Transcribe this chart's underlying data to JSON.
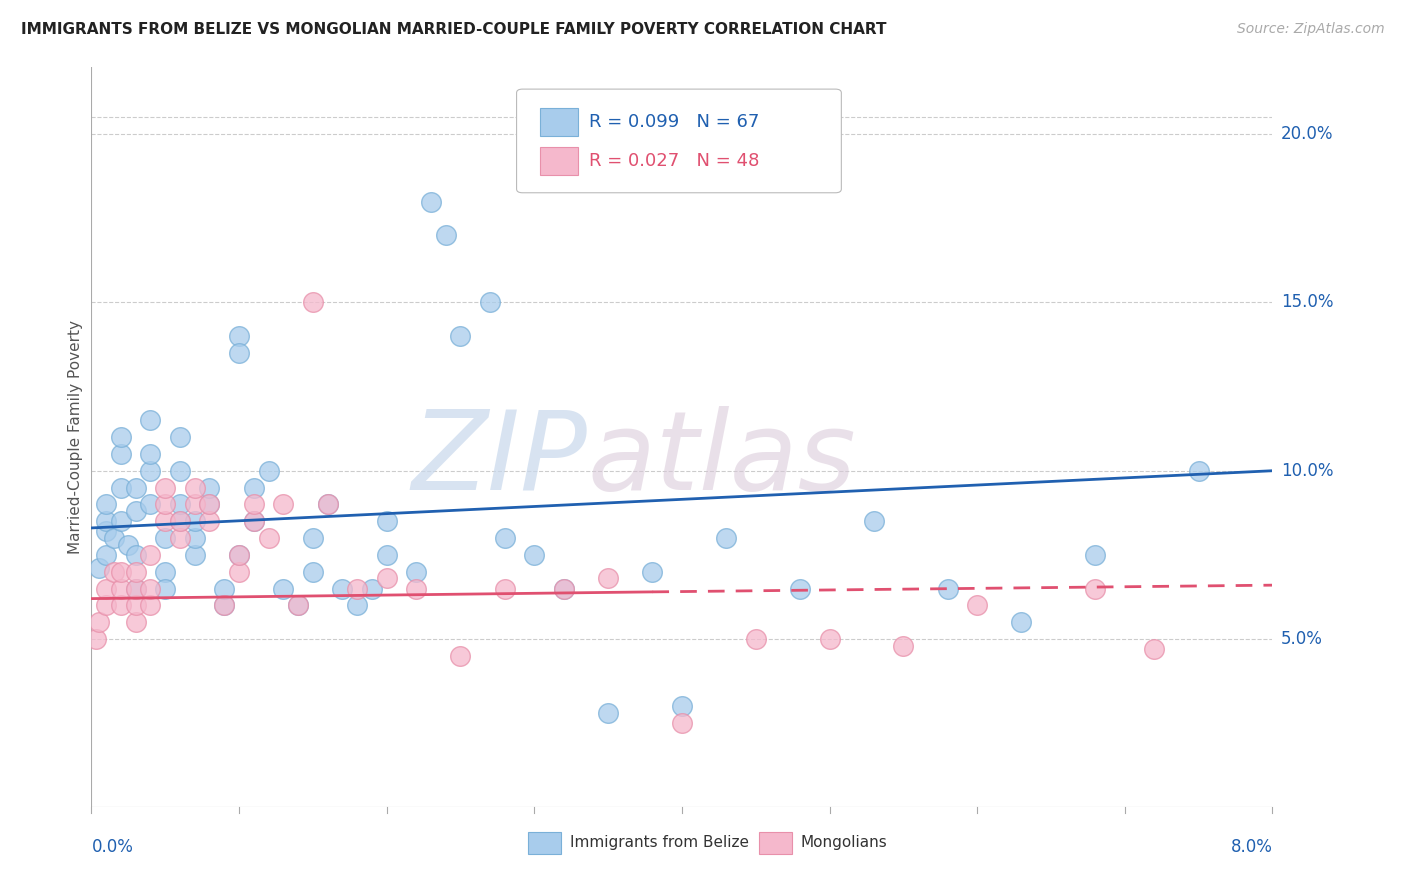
{
  "title": "IMMIGRANTS FROM BELIZE VS MONGOLIAN MARRIED-COUPLE FAMILY POVERTY CORRELATION CHART",
  "source": "Source: ZipAtlas.com",
  "ylabel": "Married-Couple Family Poverty",
  "yaxis_labels": [
    "5.0%",
    "10.0%",
    "15.0%",
    "20.0%"
  ],
  "yaxis_values": [
    0.05,
    0.1,
    0.15,
    0.2
  ],
  "xlim": [
    0.0,
    0.08
  ],
  "ylim": [
    0.0,
    0.22
  ],
  "watermark_zip": "ZIP",
  "watermark_atlas": "atlas",
  "blue_color": "#a8ccec",
  "blue_edge": "#7ab0d8",
  "pink_color": "#f5b8cc",
  "pink_edge": "#e890aa",
  "trend_blue": "#2060b0",
  "trend_pink": "#e05070",
  "legend1_R": "R = 0.099",
  "legend1_N": "N = 67",
  "legend2_R": "R = 0.027",
  "legend2_N": "N = 48",
  "belize_x": [
    0.0005,
    0.001,
    0.001,
    0.001,
    0.001,
    0.0015,
    0.002,
    0.002,
    0.002,
    0.002,
    0.0025,
    0.003,
    0.003,
    0.003,
    0.003,
    0.004,
    0.004,
    0.004,
    0.004,
    0.005,
    0.005,
    0.005,
    0.006,
    0.006,
    0.006,
    0.006,
    0.007,
    0.007,
    0.007,
    0.008,
    0.008,
    0.009,
    0.009,
    0.01,
    0.01,
    0.01,
    0.011,
    0.011,
    0.012,
    0.013,
    0.014,
    0.015,
    0.015,
    0.016,
    0.017,
    0.018,
    0.019,
    0.02,
    0.02,
    0.022,
    0.023,
    0.024,
    0.025,
    0.027,
    0.028,
    0.03,
    0.032,
    0.035,
    0.038,
    0.04,
    0.043,
    0.048,
    0.053,
    0.058,
    0.063,
    0.068,
    0.075
  ],
  "belize_y": [
    0.071,
    0.075,
    0.082,
    0.085,
    0.09,
    0.08,
    0.095,
    0.105,
    0.11,
    0.085,
    0.078,
    0.088,
    0.095,
    0.075,
    0.065,
    0.09,
    0.1,
    0.105,
    0.115,
    0.08,
    0.07,
    0.065,
    0.085,
    0.09,
    0.1,
    0.11,
    0.075,
    0.08,
    0.085,
    0.09,
    0.095,
    0.06,
    0.065,
    0.14,
    0.135,
    0.075,
    0.085,
    0.095,
    0.1,
    0.065,
    0.06,
    0.07,
    0.08,
    0.09,
    0.065,
    0.06,
    0.065,
    0.075,
    0.085,
    0.07,
    0.18,
    0.17,
    0.14,
    0.15,
    0.08,
    0.075,
    0.065,
    0.028,
    0.07,
    0.03,
    0.08,
    0.065,
    0.085,
    0.065,
    0.055,
    0.075,
    0.1
  ],
  "mongol_x": [
    0.0003,
    0.0005,
    0.001,
    0.001,
    0.0015,
    0.002,
    0.002,
    0.002,
    0.003,
    0.003,
    0.003,
    0.003,
    0.004,
    0.004,
    0.004,
    0.005,
    0.005,
    0.005,
    0.006,
    0.006,
    0.007,
    0.007,
    0.008,
    0.008,
    0.009,
    0.01,
    0.01,
    0.011,
    0.011,
    0.012,
    0.013,
    0.014,
    0.015,
    0.016,
    0.018,
    0.02,
    0.022,
    0.025,
    0.028,
    0.032,
    0.035,
    0.04,
    0.045,
    0.05,
    0.055,
    0.06,
    0.068,
    0.072
  ],
  "mongol_y": [
    0.05,
    0.055,
    0.06,
    0.065,
    0.07,
    0.06,
    0.065,
    0.07,
    0.055,
    0.06,
    0.065,
    0.07,
    0.06,
    0.065,
    0.075,
    0.085,
    0.09,
    0.095,
    0.08,
    0.085,
    0.09,
    0.095,
    0.085,
    0.09,
    0.06,
    0.07,
    0.075,
    0.085,
    0.09,
    0.08,
    0.09,
    0.06,
    0.15,
    0.09,
    0.065,
    0.068,
    0.065,
    0.045,
    0.065,
    0.065,
    0.068,
    0.025,
    0.05,
    0.05,
    0.048,
    0.06,
    0.065,
    0.047
  ],
  "trend_blue_x0": 0.0,
  "trend_blue_x1": 0.08,
  "trend_blue_y0": 0.083,
  "trend_blue_y1": 0.1,
  "trend_pink_solid_x0": 0.0,
  "trend_pink_solid_x1": 0.038,
  "trend_pink_solid_y0": 0.062,
  "trend_pink_solid_y1": 0.064,
  "trend_pink_dash_x0": 0.038,
  "trend_pink_dash_x1": 0.08,
  "trend_pink_dash_y0": 0.064,
  "trend_pink_dash_y1": 0.066
}
